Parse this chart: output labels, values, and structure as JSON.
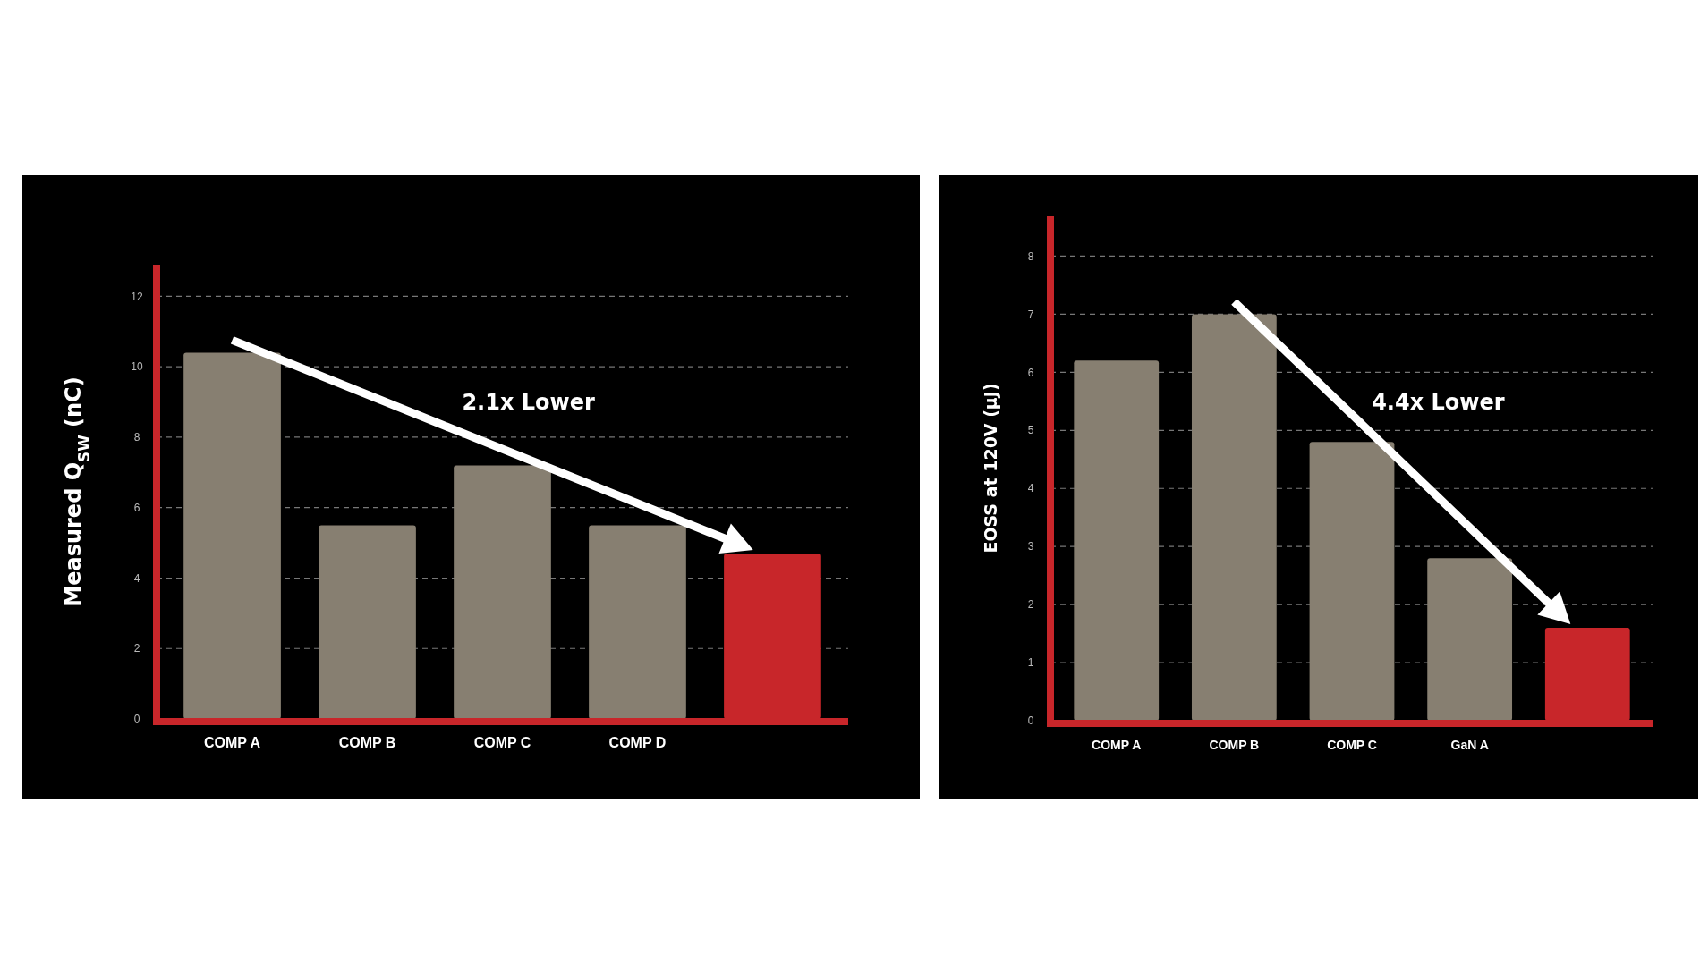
{
  "chart_data": [
    {
      "type": "bar",
      "ylabel": "Measured Q$_{SW}$ (nC)",
      "categories": [
        "COMP A",
        "COMP B",
        "COMP C",
        "COMP D",
        null
      ],
      "values": [
        10.4,
        5.5,
        7.2,
        5.5,
        4.7
      ],
      "colors": [
        "#877f71",
        "#877f71",
        "#877f71",
        "#877f71",
        "#c8262a"
      ],
      "ylim": [
        0,
        12.9
      ],
      "yticks": [
        0,
        2,
        4,
        6,
        8,
        10,
        12
      ],
      "grid": "y",
      "annotations": [
        "2.1x Lower"
      ]
    },
    {
      "type": "bar",
      "ylabel": "EOSS at 120V (µJ)",
      "categories": [
        "COMP A",
        "COMP B",
        "COMP C",
        "GaN A",
        null
      ],
      "values": [
        6.2,
        7.0,
        4.8,
        2.8,
        1.6
      ],
      "colors": [
        "#877f71",
        "#877f71",
        "#877f71",
        "#877f71",
        "#c8262a"
      ],
      "ylim": [
        0,
        8.7
      ],
      "yticks": [
        0,
        1,
        2,
        3,
        4,
        5,
        6,
        7,
        8
      ],
      "grid": "y",
      "annotations": [
        "4.4x Lower"
      ]
    }
  ]
}
